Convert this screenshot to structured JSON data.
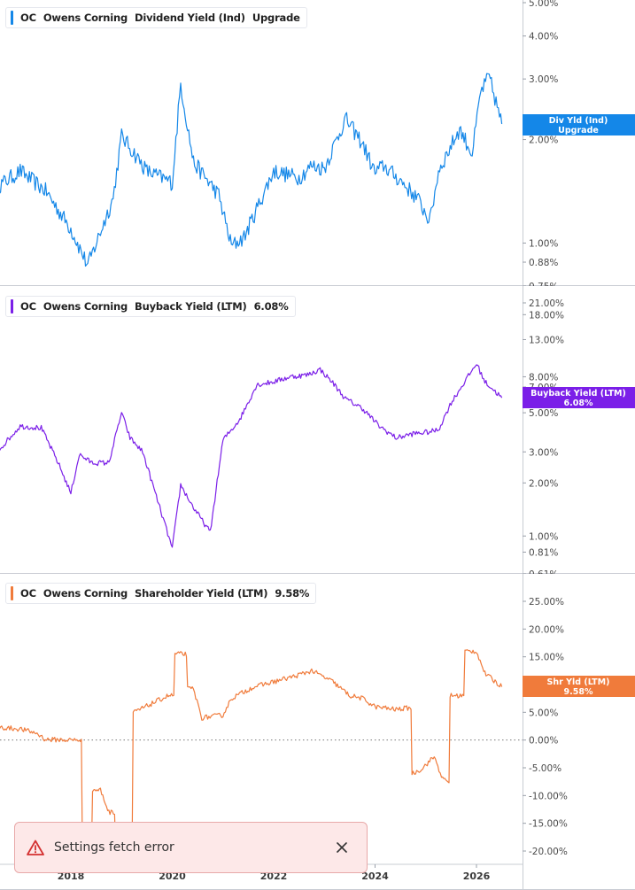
{
  "colors": {
    "div": "#1487e8",
    "buyback": "#7b1fe8",
    "shareholder": "#f07b3b",
    "toast_bg": "#fde8e8",
    "toast_icon": "#d43030"
  },
  "toast": {
    "message": "Settings fetch error",
    "icon": "warning-icon",
    "close_icon": "close-icon"
  },
  "x_axis": {
    "ticks": [
      "2018",
      "2020",
      "2022",
      "2024",
      "2026"
    ]
  },
  "chart_data": [
    {
      "type": "line",
      "legend": {
        "ticker": "OC",
        "company": "Owens Corning",
        "metric": "Dividend Yield (Ind)",
        "value": "Upgrade"
      },
      "tag": {
        "line1": "Div Yld (Ind)",
        "line2": "Upgrade"
      },
      "y_scale": "log",
      "y_ticks": [
        "5.00%",
        "4.00%",
        "3.00%",
        "2.00%",
        "1.00%",
        "0.88%",
        "0.75%"
      ],
      "ylim": [
        0.75,
        5.0
      ],
      "x": [
        "2016-07",
        "2017-01",
        "2017-07",
        "2018-01",
        "2018-05",
        "2018-11",
        "2019-01",
        "2019-07",
        "2020-01",
        "2020-03",
        "2020-06",
        "2020-12",
        "2021-03",
        "2021-06",
        "2022-01",
        "2022-07",
        "2022-10",
        "2023-01",
        "2023-06",
        "2023-10",
        "2024-01",
        "2024-03",
        "2024-07",
        "2024-11",
        "2025-02",
        "2025-04",
        "2025-09",
        "2025-12",
        "2026-02",
        "2026-04",
        "2026-07"
      ],
      "y": [
        1.44,
        1.62,
        1.42,
        1.1,
        0.86,
        1.35,
        2.05,
        1.62,
        1.5,
        2.9,
        1.72,
        1.38,
        0.98,
        1.04,
        1.62,
        1.55,
        1.68,
        1.65,
        2.3,
        1.95,
        1.6,
        1.68,
        1.52,
        1.35,
        1.16,
        1.62,
        2.15,
        1.82,
        2.75,
        3.05,
        2.22
      ]
    },
    {
      "type": "line",
      "legend": {
        "ticker": "OC",
        "company": "Owens Corning",
        "metric": "Buyback Yield (LTM)",
        "value": "6.08%"
      },
      "tag": {
        "line1": "Buyback Yield (LTM)",
        "line2": "6.08%"
      },
      "y_scale": "log",
      "y_ticks": [
        "21.00%",
        "18.00%",
        "13.00%",
        "8.00%",
        "7.00%",
        "5.00%",
        "3.00%",
        "2.00%",
        "1.00%",
        "0.81%",
        "0.61%"
      ],
      "ylim": [
        0.61,
        21.0
      ],
      "x": [
        "2016-07",
        "2017-01",
        "2017-06",
        "2017-10",
        "2018-01",
        "2018-03",
        "2018-06",
        "2018-10",
        "2019-01",
        "2019-03",
        "2019-06",
        "2020-01",
        "2020-03",
        "2020-06",
        "2020-10",
        "2021-01",
        "2021-03",
        "2021-05",
        "2021-09",
        "2022-01",
        "2022-05",
        "2022-09",
        "2022-12",
        "2023-03",
        "2023-06",
        "2023-10",
        "2024-02",
        "2024-06",
        "2024-10",
        "2025-02",
        "2025-04",
        "2025-07",
        "2026-01",
        "2026-03",
        "2026-07"
      ],
      "y": [
        2.9,
        4.2,
        4.1,
        2.6,
        1.75,
        2.9,
        2.6,
        2.6,
        5.0,
        3.6,
        3.0,
        0.85,
        1.95,
        1.45,
        1.05,
        3.5,
        4.0,
        4.6,
        7.2,
        7.5,
        8.0,
        8.2,
        8.8,
        7.4,
        6.0,
        5.3,
        4.2,
        3.6,
        3.8,
        3.9,
        4.0,
        5.7,
        9.5,
        7.5,
        6.08
      ]
    },
    {
      "type": "line",
      "legend": {
        "ticker": "OC",
        "company": "Owens Corning",
        "metric": "Shareholder Yield (LTM)",
        "value": "9.58%"
      },
      "tag": {
        "line1": "Shr Yld (LTM)",
        "line2": "9.58%"
      },
      "y_scale": "linear",
      "y_ticks": [
        "25.00%",
        "20.00%",
        "15.00%",
        "10.00%",
        "5.00%",
        "0.00%",
        "-5.00%",
        "-10.00%",
        "-15.00%",
        "-20.00%"
      ],
      "ylim": [
        -20,
        25
      ],
      "zero_line": true,
      "x": [
        "2016-07",
        "2017-01",
        "2017-05",
        "2017-07",
        "2018-01",
        "2018-03",
        "2018-04",
        "2018-08",
        "2018-10",
        "2019-01",
        "2019-03",
        "2019-04",
        "2019-08",
        "2019-12",
        "2020-03",
        "2020-06",
        "2020-08",
        "2021-01",
        "2021-03",
        "2021-08",
        "2022-01",
        "2022-06",
        "2022-10",
        "2023-03",
        "2023-07",
        "2023-10",
        "2024-01",
        "2024-06",
        "2024-09",
        "2024-10",
        "2024-12",
        "2025-03",
        "2025-05",
        "2025-06",
        "2025-07",
        "2026-01",
        "2026-03",
        "2026-07"
      ],
      "y": [
        2.3,
        2.0,
        1.2,
        0.1,
        0.0,
        0.0,
        -21.0,
        -9.0,
        -13.0,
        -20.0,
        -19.0,
        5.0,
        6.5,
        8.0,
        15.5,
        9.2,
        4.0,
        4.5,
        7.5,
        9.5,
        10.5,
        11.5,
        12.5,
        10.5,
        8.0,
        7.5,
        6.0,
        5.5,
        5.8,
        -6.0,
        -5.2,
        -3.0,
        -7.0,
        -7.5,
        8.0,
        16.0,
        12.0,
        9.58
      ]
    }
  ]
}
